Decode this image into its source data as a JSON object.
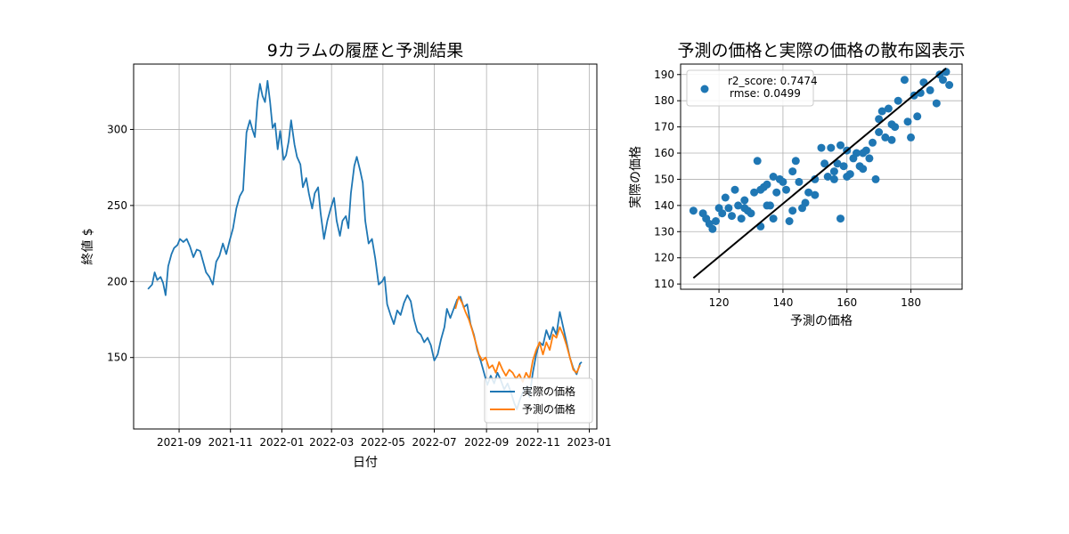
{
  "chart_data": [
    {
      "type": "line",
      "title": "9カラムの履歴と予測結果",
      "xlabel": "日付",
      "ylabel": "終値 $",
      "xlim": [
        "2021-07-09",
        "2023-01-10"
      ],
      "ylim": [
        103,
        343
      ],
      "x_ticks": [
        "2021-09",
        "2021-11",
        "2022-01",
        "2022-03",
        "2022-05",
        "2022-07",
        "2022-09",
        "2022-11",
        "2023-01"
      ],
      "y_ticks": [
        150,
        200,
        250,
        300
      ],
      "grid": true,
      "legend_position": "lower-right",
      "series": [
        {
          "name": "実際の価格",
          "color": "#1f77b4",
          "points": [
            [
              "2021-07-26",
              195
            ],
            [
              "2021-07-31",
              198
            ],
            [
              "2021-08-03",
              206
            ],
            [
              "2021-08-06",
              201
            ],
            [
              "2021-08-10",
              203
            ],
            [
              "2021-08-13",
              199
            ],
            [
              "2021-08-16",
              191
            ],
            [
              "2021-08-19",
              210
            ],
            [
              "2021-08-23",
              218
            ],
            [
              "2021-08-26",
              222
            ],
            [
              "2021-08-30",
              224
            ],
            [
              "2021-09-02",
              228
            ],
            [
              "2021-09-06",
              226
            ],
            [
              "2021-09-10",
              228
            ],
            [
              "2021-09-14",
              223
            ],
            [
              "2021-09-18",
              216
            ],
            [
              "2021-09-22",
              221
            ],
            [
              "2021-09-26",
              220
            ],
            [
              "2021-09-30",
              212
            ],
            [
              "2021-10-03",
              206
            ],
            [
              "2021-10-07",
              203
            ],
            [
              "2021-10-11",
              198
            ],
            [
              "2021-10-15",
              213
            ],
            [
              "2021-10-19",
              217
            ],
            [
              "2021-10-23",
              225
            ],
            [
              "2021-10-27",
              218
            ],
            [
              "2021-10-31",
              227
            ],
            [
              "2021-11-04",
              235
            ],
            [
              "2021-11-08",
              248
            ],
            [
              "2021-11-12",
              256
            ],
            [
              "2021-11-16",
              260
            ],
            [
              "2021-11-20",
              298
            ],
            [
              "2021-11-24",
              306
            ],
            [
              "2021-11-27",
              300
            ],
            [
              "2021-11-30",
              295
            ],
            [
              "2021-12-03",
              318
            ],
            [
              "2021-12-06",
              330
            ],
            [
              "2021-12-09",
              322
            ],
            [
              "2021-12-12",
              318
            ],
            [
              "2021-12-15",
              332
            ],
            [
              "2021-12-18",
              318
            ],
            [
              "2021-12-21",
              301
            ],
            [
              "2021-12-24",
              304
            ],
            [
              "2021-12-27",
              287
            ],
            [
              "2021-12-30",
              299
            ],
            [
              "2022-01-03",
              280
            ],
            [
              "2022-01-06",
              283
            ],
            [
              "2022-01-09",
              292
            ],
            [
              "2022-01-12",
              306
            ],
            [
              "2022-01-16",
              290
            ],
            [
              "2022-01-19",
              282
            ],
            [
              "2022-01-23",
              277
            ],
            [
              "2022-01-26",
              262
            ],
            [
              "2022-01-30",
              268
            ],
            [
              "2022-02-02",
              258
            ],
            [
              "2022-02-06",
              248
            ],
            [
              "2022-02-09",
              258
            ],
            [
              "2022-02-13",
              262
            ],
            [
              "2022-02-16",
              245
            ],
            [
              "2022-02-20",
              228
            ],
            [
              "2022-02-24",
              240
            ],
            [
              "2022-02-28",
              248
            ],
            [
              "2022-03-04",
              255
            ],
            [
              "2022-03-07",
              240
            ],
            [
              "2022-03-11",
              230
            ],
            [
              "2022-03-14",
              240
            ],
            [
              "2022-03-18",
              243
            ],
            [
              "2022-03-21",
              235
            ],
            [
              "2022-03-24",
              258
            ],
            [
              "2022-03-28",
              276
            ],
            [
              "2022-03-31",
              282
            ],
            [
              "2022-04-04",
              273
            ],
            [
              "2022-04-07",
              265
            ],
            [
              "2022-04-10",
              240
            ],
            [
              "2022-04-14",
              225
            ],
            [
              "2022-04-18",
              228
            ],
            [
              "2022-04-22",
              215
            ],
            [
              "2022-04-26",
              198
            ],
            [
              "2022-04-30",
              200
            ],
            [
              "2022-05-03",
              203
            ],
            [
              "2022-05-06",
              185
            ],
            [
              "2022-05-10",
              178
            ],
            [
              "2022-05-14",
              172
            ],
            [
              "2022-05-18",
              181
            ],
            [
              "2022-05-22",
              178
            ],
            [
              "2022-05-26",
              186
            ],
            [
              "2022-05-30",
              191
            ],
            [
              "2022-06-03",
              187
            ],
            [
              "2022-06-07",
              175
            ],
            [
              "2022-06-11",
              167
            ],
            [
              "2022-06-15",
              165
            ],
            [
              "2022-06-19",
              160
            ],
            [
              "2022-06-23",
              163
            ],
            [
              "2022-06-27",
              158
            ],
            [
              "2022-07-01",
              148
            ],
            [
              "2022-07-05",
              152
            ],
            [
              "2022-07-09",
              162
            ],
            [
              "2022-07-13",
              170
            ],
            [
              "2022-07-16",
              182
            ],
            [
              "2022-07-20",
              176
            ],
            [
              "2022-07-24",
              182
            ],
            [
              "2022-07-28",
              188
            ],
            [
              "2022-08-01",
              190
            ],
            [
              "2022-08-05",
              183
            ],
            [
              "2022-08-09",
              185
            ],
            [
              "2022-08-13",
              172
            ],
            [
              "2022-08-17",
              165
            ],
            [
              "2022-08-21",
              155
            ],
            [
              "2022-08-25",
              148
            ],
            [
              "2022-08-29",
              140
            ],
            [
              "2022-09-02",
              132
            ],
            [
              "2022-09-06",
              138
            ],
            [
              "2022-09-10",
              133
            ],
            [
              "2022-09-14",
              140
            ],
            [
              "2022-09-18",
              135
            ],
            [
              "2022-09-22",
              129
            ],
            [
              "2022-09-26",
              133
            ],
            [
              "2022-09-30",
              127
            ],
            [
              "2022-10-04",
              120
            ],
            [
              "2022-10-07",
              116
            ],
            [
              "2022-10-11",
              123
            ],
            [
              "2022-10-15",
              128
            ],
            [
              "2022-10-19",
              131
            ],
            [
              "2022-10-22",
              124
            ],
            [
              "2022-10-26",
              140
            ],
            [
              "2022-10-30",
              152
            ],
            [
              "2022-11-03",
              160
            ],
            [
              "2022-11-07",
              158
            ],
            [
              "2022-11-11",
              168
            ],
            [
              "2022-11-15",
              162
            ],
            [
              "2022-11-19",
              170
            ],
            [
              "2022-11-23",
              165
            ],
            [
              "2022-11-27",
              180
            ],
            [
              "2022-12-01",
              170
            ],
            [
              "2022-12-05",
              160
            ],
            [
              "2022-12-09",
              150
            ],
            [
              "2022-12-13",
              143
            ],
            [
              "2022-12-17",
              139
            ],
            [
              "2022-12-21",
              146
            ],
            [
              "2022-12-23",
              147
            ]
          ]
        },
        {
          "name": "予測の価格",
          "color": "#ff7f0e",
          "points": [
            [
              "2022-07-26",
              182
            ],
            [
              "2022-07-30",
              190
            ],
            [
              "2022-08-03",
              186
            ],
            [
              "2022-08-07",
              180
            ],
            [
              "2022-08-11",
              175
            ],
            [
              "2022-08-15",
              168
            ],
            [
              "2022-08-19",
              160
            ],
            [
              "2022-08-23",
              152
            ],
            [
              "2022-08-27",
              148
            ],
            [
              "2022-08-31",
              150
            ],
            [
              "2022-09-04",
              143
            ],
            [
              "2022-09-08",
              145
            ],
            [
              "2022-09-12",
              140
            ],
            [
              "2022-09-16",
              147
            ],
            [
              "2022-09-20",
              142
            ],
            [
              "2022-09-24",
              138
            ],
            [
              "2022-09-28",
              142
            ],
            [
              "2022-10-02",
              140
            ],
            [
              "2022-10-06",
              136
            ],
            [
              "2022-10-10",
              139
            ],
            [
              "2022-10-14",
              134
            ],
            [
              "2022-10-18",
              140
            ],
            [
              "2022-10-22",
              136
            ],
            [
              "2022-10-26",
              148
            ],
            [
              "2022-10-30",
              155
            ],
            [
              "2022-11-03",
              160
            ],
            [
              "2022-11-07",
              152
            ],
            [
              "2022-11-11",
              160
            ],
            [
              "2022-11-15",
              155
            ],
            [
              "2022-11-19",
              165
            ],
            [
              "2022-11-23",
              163
            ],
            [
              "2022-11-27",
              170
            ],
            [
              "2022-12-01",
              165
            ],
            [
              "2022-12-05",
              158
            ],
            [
              "2022-12-09",
              150
            ],
            [
              "2022-12-13",
              142
            ],
            [
              "2022-12-17",
              140
            ],
            [
              "2022-12-21",
              145
            ]
          ]
        }
      ]
    },
    {
      "type": "scatter",
      "title": "予測の価格と実際の価格の散布図表示",
      "xlabel": "予測の価格",
      "ylabel": "実際の価格",
      "xlim": [
        108,
        196
      ],
      "ylim": [
        108,
        194
      ],
      "x_ticks": [
        120,
        140,
        160,
        180
      ],
      "y_ticks": [
        110,
        120,
        130,
        140,
        150,
        160,
        170,
        180,
        190
      ],
      "grid": true,
      "legend_position": "upper-left",
      "legend_text": [
        "r2_score: 0.7474",
        "rmse: 0.0499"
      ],
      "point_color": "#1f77b4",
      "fit_line": {
        "x": [
          112,
          191
        ],
        "y": [
          112.3,
          192.4
        ],
        "color": "#000000"
      },
      "points": [
        [
          112,
          138
        ],
        [
          115,
          137
        ],
        [
          116,
          135
        ],
        [
          117,
          133
        ],
        [
          118,
          131
        ],
        [
          119,
          134
        ],
        [
          120,
          139
        ],
        [
          121,
          137
        ],
        [
          122,
          143
        ],
        [
          123,
          139
        ],
        [
          124,
          136
        ],
        [
          125,
          146
        ],
        [
          126,
          140
        ],
        [
          127,
          135
        ],
        [
          128,
          139
        ],
        [
          129,
          138
        ],
        [
          130,
          137
        ],
        [
          131,
          145
        ],
        [
          132,
          157
        ],
        [
          133,
          146
        ],
        [
          134,
          147
        ],
        [
          135,
          148
        ],
        [
          136,
          140
        ],
        [
          137,
          151
        ],
        [
          138,
          145
        ],
        [
          139,
          150
        ],
        [
          140,
          149
        ],
        [
          141,
          146
        ],
        [
          142,
          134
        ],
        [
          143,
          153
        ],
        [
          144,
          157
        ],
        [
          146,
          139
        ],
        [
          148,
          145
        ],
        [
          150,
          144
        ],
        [
          152,
          162
        ],
        [
          153,
          156
        ],
        [
          154,
          151
        ],
        [
          155,
          162
        ],
        [
          156,
          150
        ],
        [
          157,
          156
        ],
        [
          158,
          163
        ],
        [
          159,
          155
        ],
        [
          160,
          161
        ],
        [
          161,
          152
        ],
        [
          162,
          158
        ],
        [
          163,
          160
        ],
        [
          164,
          155
        ],
        [
          165,
          154
        ],
        [
          166,
          161
        ],
        [
          167,
          158
        ],
        [
          168,
          164
        ],
        [
          169,
          150
        ],
        [
          170,
          168
        ],
        [
          171,
          176
        ],
        [
          172,
          166
        ],
        [
          173,
          177
        ],
        [
          174,
          165
        ],
        [
          175,
          170
        ],
        [
          176,
          180
        ],
        [
          178,
          188
        ],
        [
          179,
          172
        ],
        [
          180,
          166
        ],
        [
          181,
          182
        ],
        [
          182,
          174
        ],
        [
          183,
          183
        ],
        [
          184,
          187
        ],
        [
          186,
          184
        ],
        [
          188,
          179
        ],
        [
          189,
          190
        ],
        [
          190,
          188
        ],
        [
          191,
          191
        ],
        [
          192,
          186
        ],
        [
          133,
          132
        ],
        [
          137,
          135
        ],
        [
          143,
          138
        ],
        [
          147,
          141
        ],
        [
          150,
          150
        ],
        [
          156,
          153
        ],
        [
          160,
          151
        ],
        [
          165,
          160
        ],
        [
          170,
          173
        ],
        [
          174,
          171
        ],
        [
          128,
          142
        ],
        [
          135,
          140
        ],
        [
          145,
          149
        ],
        [
          158,
          135
        ]
      ]
    }
  ]
}
